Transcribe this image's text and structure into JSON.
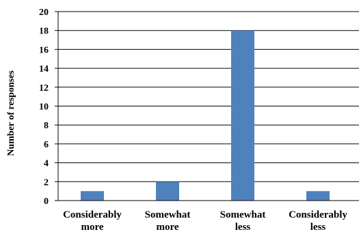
{
  "chart_data": {
    "type": "bar",
    "categories": [
      [
        "Considerably",
        "more"
      ],
      [
        "Somewhat",
        "more"
      ],
      [
        "Somewhat",
        "less"
      ],
      [
        "Considerably",
        "less"
      ]
    ],
    "values": [
      1,
      2,
      18,
      1
    ],
    "ylabel": "Number of responses",
    "xlabel": "",
    "title": "",
    "ylim": [
      0,
      20
    ],
    "yticks": [
      0,
      2,
      4,
      6,
      8,
      10,
      12,
      14,
      16,
      18,
      20
    ],
    "grid": true,
    "legend": "none",
    "bar_color": "#4f81bd"
  }
}
